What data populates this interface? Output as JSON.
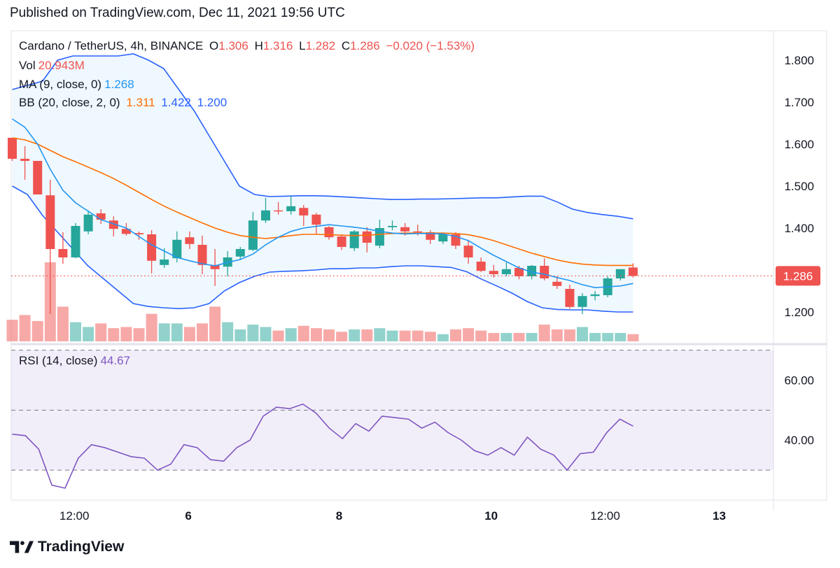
{
  "published": "Published on TradingView.com, Dec 11, 2021 19:56 UTC",
  "brand": "TradingView",
  "legend": {
    "symbol": "Cardano / TetherUS, 4h, BINANCE",
    "o_label": "O",
    "o": "1.306",
    "h_label": "H",
    "h": "1.316",
    "l_label": "L",
    "l": "1.282",
    "c_label": "C",
    "c": "1.286",
    "change": "−0.020 (−1.53%)",
    "vol_label": "Vol",
    "vol": "20.943M",
    "ma_label": "MA (9, close, 0)",
    "ma": "1.268",
    "bb_label": "BB (20, close, 2, 0)",
    "bb_mid": "1.311",
    "bb_up": "1.422",
    "bb_low": "1.200",
    "rsi_label": "RSI (14, close)",
    "rsi": "44.67"
  },
  "colors": {
    "up": "#26a69a",
    "down": "#ef5350",
    "ma": "#2196f3",
    "bb_mid": "#ff6d00",
    "bb_band": "#2962ff",
    "rsi": "#7e57c2",
    "band_fill": "#2196f3",
    "rsi_fill": "#7e57c2"
  },
  "chart_data": [
    {
      "type": "candlestick",
      "title": "Cardano / TetherUS, 4h, BINANCE",
      "ylim": [
        1.13,
        1.87
      ],
      "y_ticks": [
        "1.800",
        "1.700",
        "1.600",
        "1.500",
        "1.400",
        "1.200"
      ],
      "last_price_label": "1.286",
      "last_price": 1.286,
      "x_ticks": [
        {
          "label": "12:00",
          "index": 4.9
        },
        {
          "label": "6",
          "index": 13.9
        },
        {
          "label": "8",
          "index": 25.8
        },
        {
          "label": "10",
          "index": 37.8
        },
        {
          "label": "12:00",
          "index": 46.8
        },
        {
          "label": "13",
          "index": 55.8
        }
      ],
      "candles": [
        {
          "o": 1.615,
          "h": 1.615,
          "l": 1.56,
          "c": 1.565
        },
        {
          "o": 1.565,
          "h": 1.595,
          "l": 1.515,
          "c": 1.56
        },
        {
          "o": 1.56,
          "h": 1.56,
          "l": 1.485,
          "c": 1.48
        },
        {
          "o": 1.478,
          "h": 1.515,
          "l": 1.195,
          "c": 1.35
        },
        {
          "o": 1.35,
          "h": 1.39,
          "l": 1.315,
          "c": 1.33
        },
        {
          "o": 1.33,
          "h": 1.412,
          "l": 1.328,
          "c": 1.405
        },
        {
          "o": 1.392,
          "h": 1.442,
          "l": 1.385,
          "c": 1.432
        },
        {
          "o": 1.435,
          "h": 1.445,
          "l": 1.41,
          "c": 1.42
        },
        {
          "o": 1.418,
          "h": 1.428,
          "l": 1.38,
          "c": 1.398
        },
        {
          "o": 1.398,
          "h": 1.412,
          "l": 1.382,
          "c": 1.386
        },
        {
          "o": 1.388,
          "h": 1.392,
          "l": 1.372,
          "c": 1.385
        },
        {
          "o": 1.385,
          "h": 1.395,
          "l": 1.292,
          "c": 1.322
        },
        {
          "o": 1.312,
          "h": 1.352,
          "l": 1.305,
          "c": 1.325
        },
        {
          "o": 1.328,
          "h": 1.392,
          "l": 1.318,
          "c": 1.372
        },
        {
          "o": 1.378,
          "h": 1.392,
          "l": 1.35,
          "c": 1.362
        },
        {
          "o": 1.36,
          "h": 1.382,
          "l": 1.29,
          "c": 1.312
        },
        {
          "o": 1.312,
          "h": 1.35,
          "l": 1.262,
          "c": 1.302
        },
        {
          "o": 1.308,
          "h": 1.345,
          "l": 1.285,
          "c": 1.33
        },
        {
          "o": 1.332,
          "h": 1.355,
          "l": 1.325,
          "c": 1.35
        },
        {
          "o": 1.348,
          "h": 1.438,
          "l": 1.345,
          "c": 1.418
        },
        {
          "o": 1.418,
          "h": 1.472,
          "l": 1.412,
          "c": 1.442
        },
        {
          "o": 1.442,
          "h": 1.462,
          "l": 1.432,
          "c": 1.44
        },
        {
          "o": 1.44,
          "h": 1.478,
          "l": 1.432,
          "c": 1.452
        },
        {
          "o": 1.448,
          "h": 1.455,
          "l": 1.405,
          "c": 1.43
        },
        {
          "o": 1.432,
          "h": 1.436,
          "l": 1.385,
          "c": 1.408
        },
        {
          "o": 1.402,
          "h": 1.405,
          "l": 1.372,
          "c": 1.378
        },
        {
          "o": 1.38,
          "h": 1.385,
          "l": 1.348,
          "c": 1.355
        },
        {
          "o": 1.352,
          "h": 1.395,
          "l": 1.345,
          "c": 1.392
        },
        {
          "o": 1.392,
          "h": 1.402,
          "l": 1.342,
          "c": 1.365
        },
        {
          "o": 1.358,
          "h": 1.42,
          "l": 1.352,
          "c": 1.4
        },
        {
          "o": 1.402,
          "h": 1.418,
          "l": 1.395,
          "c": 1.405
        },
        {
          "o": 1.402,
          "h": 1.412,
          "l": 1.382,
          "c": 1.392
        },
        {
          "o": 1.392,
          "h": 1.408,
          "l": 1.382,
          "c": 1.39
        },
        {
          "o": 1.39,
          "h": 1.395,
          "l": 1.362,
          "c": 1.372
        },
        {
          "o": 1.368,
          "h": 1.385,
          "l": 1.362,
          "c": 1.385
        },
        {
          "o": 1.385,
          "h": 1.39,
          "l": 1.35,
          "c": 1.358
        },
        {
          "o": 1.358,
          "h": 1.372,
          "l": 1.315,
          "c": 1.33
        },
        {
          "o": 1.32,
          "h": 1.33,
          "l": 1.295,
          "c": 1.298
        },
        {
          "o": 1.298,
          "h": 1.312,
          "l": 1.282,
          "c": 1.29
        },
        {
          "o": 1.29,
          "h": 1.318,
          "l": 1.285,
          "c": 1.302
        },
        {
          "o": 1.305,
          "h": 1.31,
          "l": 1.278,
          "c": 1.285
        },
        {
          "o": 1.285,
          "h": 1.312,
          "l": 1.278,
          "c": 1.31
        },
        {
          "o": 1.31,
          "h": 1.328,
          "l": 1.275,
          "c": 1.28
        },
        {
          "o": 1.272,
          "h": 1.285,
          "l": 1.255,
          "c": 1.262
        },
        {
          "o": 1.255,
          "h": 1.265,
          "l": 1.208,
          "c": 1.212
        },
        {
          "o": 1.212,
          "h": 1.245,
          "l": 1.195,
          "c": 1.238
        },
        {
          "o": 1.238,
          "h": 1.25,
          "l": 1.228,
          "c": 1.242
        },
        {
          "o": 1.24,
          "h": 1.285,
          "l": 1.235,
          "c": 1.28
        },
        {
          "o": 1.28,
          "h": 1.302,
          "l": 1.275,
          "c": 1.302
        },
        {
          "o": 1.306,
          "h": 1.316,
          "l": 1.282,
          "c": 1.286
        }
      ],
      "volume": [
        0.9,
        1.1,
        0.85,
        3.3,
        1.45,
        0.8,
        0.6,
        0.75,
        0.55,
        0.6,
        0.55,
        1.15,
        0.75,
        0.75,
        0.6,
        0.75,
        1.45,
        0.8,
        0.5,
        0.7,
        0.6,
        0.45,
        0.55,
        0.65,
        0.55,
        0.5,
        0.4,
        0.5,
        0.5,
        0.55,
        0.45,
        0.45,
        0.45,
        0.4,
        0.3,
        0.5,
        0.55,
        0.45,
        0.35,
        0.35,
        0.35,
        0.35,
        0.7,
        0.5,
        0.5,
        0.6,
        0.35,
        0.35,
        0.35,
        0.3
      ],
      "ma9": [
        1.66,
        1.64,
        1.6,
        1.54,
        1.49,
        1.46,
        1.44,
        1.42,
        1.41,
        1.4,
        1.38,
        1.36,
        1.345,
        1.33,
        1.322,
        1.315,
        1.31,
        1.318,
        1.325,
        1.338,
        1.36,
        1.378,
        1.392,
        1.4,
        1.404,
        1.408,
        1.405,
        1.402,
        1.398,
        1.392,
        1.388,
        1.386,
        1.387,
        1.387,
        1.386,
        1.38,
        1.37,
        1.352,
        1.335,
        1.32,
        1.305,
        1.295,
        1.29,
        1.282,
        1.275,
        1.265,
        1.258,
        1.26,
        1.262,
        1.268
      ],
      "bb_mid": [
        1.615,
        1.61,
        1.6,
        1.585,
        1.57,
        1.558,
        1.545,
        1.532,
        1.518,
        1.502,
        1.485,
        1.468,
        1.452,
        1.438,
        1.425,
        1.412,
        1.4,
        1.39,
        1.382,
        1.378,
        1.375,
        1.378,
        1.382,
        1.385,
        1.385,
        1.384,
        1.383,
        1.382,
        1.383,
        1.385,
        1.387,
        1.388,
        1.388,
        1.388,
        1.388,
        1.387,
        1.384,
        1.378,
        1.37,
        1.36,
        1.35,
        1.34,
        1.332,
        1.324,
        1.318,
        1.314,
        1.312,
        1.311,
        1.311,
        1.311
      ],
      "bb_up": [
        1.73,
        1.74,
        1.75,
        1.8,
        1.81,
        1.81,
        1.81,
        1.81,
        1.815,
        1.8,
        1.78,
        1.73,
        1.68,
        1.62,
        1.56,
        1.5,
        1.48,
        1.475,
        1.476,
        1.477,
        1.477,
        1.476,
        1.474,
        1.472,
        1.47,
        1.468,
        1.468,
        1.469,
        1.469,
        1.47,
        1.471,
        1.472,
        1.472,
        1.474,
        1.476,
        1.476,
        1.462,
        1.445,
        1.437,
        1.432,
        1.428,
        1.422
      ],
      "bb_low": [
        1.5,
        1.48,
        1.43,
        1.39,
        1.35,
        1.31,
        1.28,
        1.25,
        1.22,
        1.213,
        1.21,
        1.208,
        1.21,
        1.22,
        1.25,
        1.27,
        1.285,
        1.295,
        1.297,
        1.298,
        1.3,
        1.303,
        1.303,
        1.305,
        1.305,
        1.308,
        1.31,
        1.31,
        1.308,
        1.306,
        1.296,
        1.278,
        1.262,
        1.245,
        1.225,
        1.21,
        1.206,
        1.205,
        1.205,
        1.202,
        1.2,
        1.2
      ]
    },
    {
      "type": "line",
      "title": "RSI (14, close)",
      "ylim": [
        20,
        72
      ],
      "y_ticks": [
        "60.00",
        "40.00"
      ],
      "bands": [
        70,
        50,
        30
      ],
      "values": [
        42,
        41.5,
        37,
        25,
        24,
        34,
        38.5,
        37.5,
        36,
        34.5,
        34,
        30,
        32,
        38.5,
        37.5,
        33.5,
        33,
        37.5,
        40,
        48,
        51,
        50.5,
        52,
        49,
        44,
        40.5,
        45.5,
        43,
        48,
        47.5,
        47,
        44,
        46,
        42.5,
        40,
        36.5,
        35,
        37.5,
        35,
        41,
        37,
        35,
        30,
        35.5,
        36,
        42.5,
        47,
        44.67
      ]
    }
  ]
}
